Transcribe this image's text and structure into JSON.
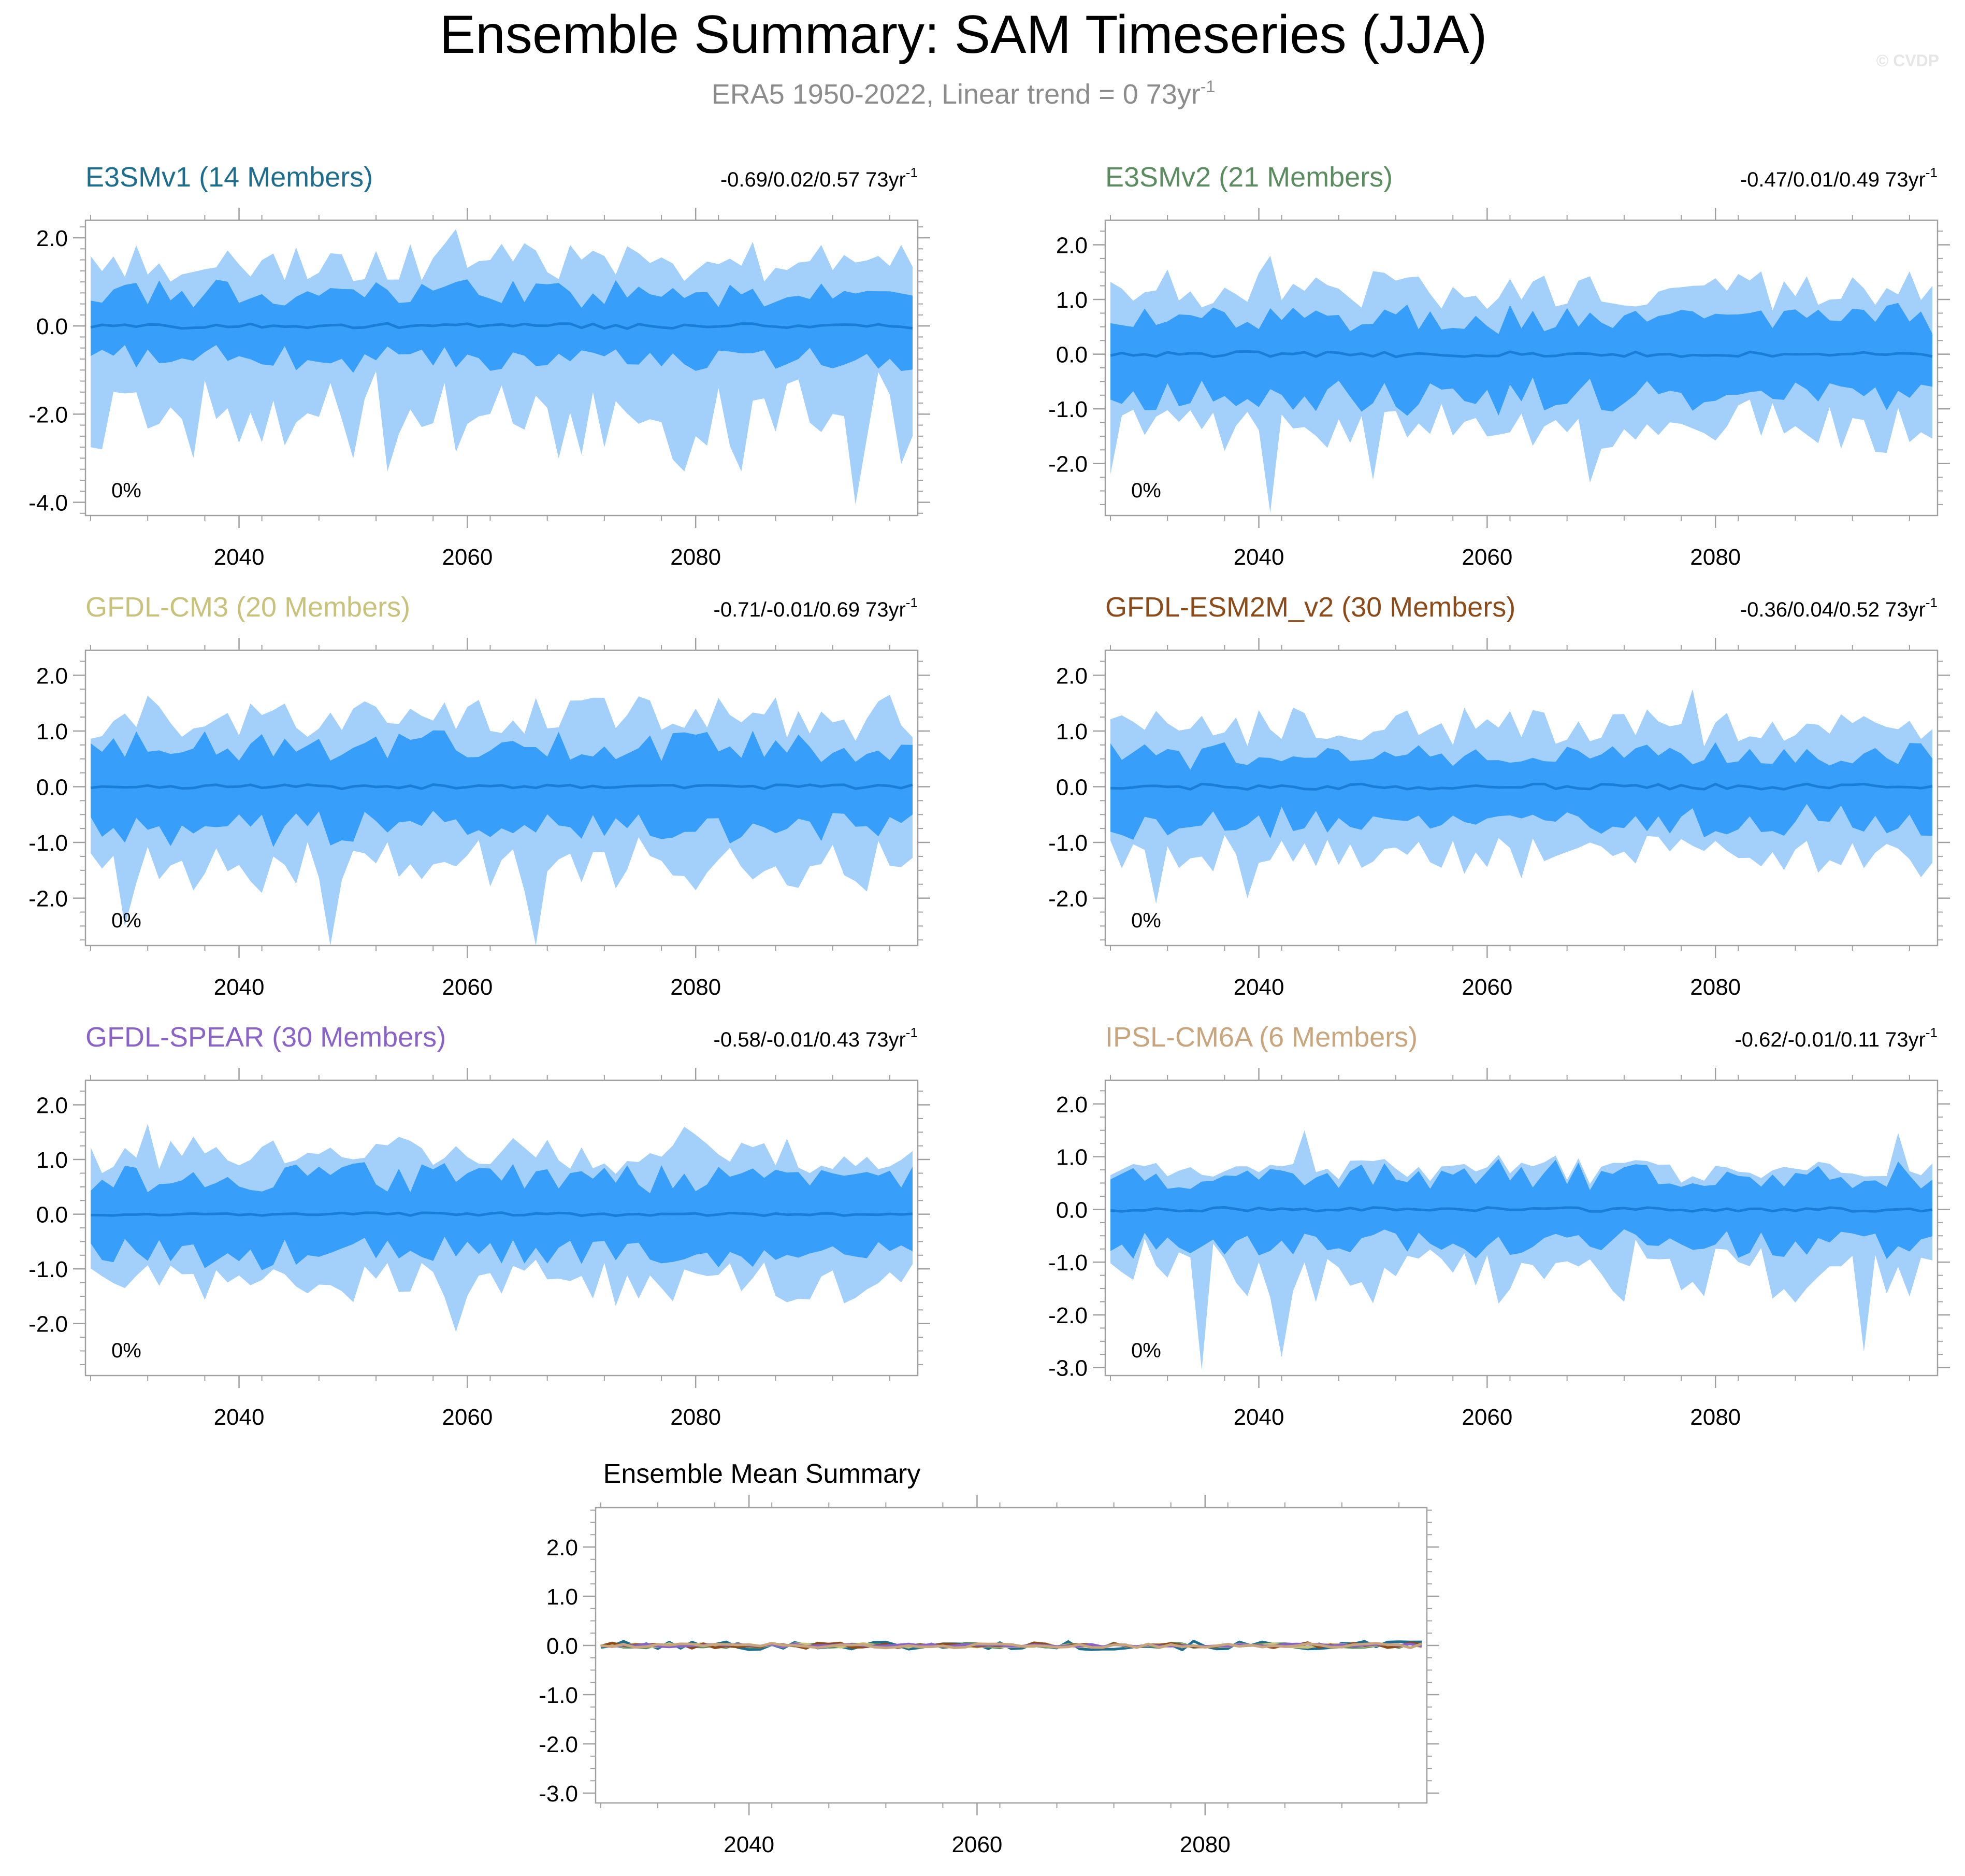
{
  "figure": {
    "title": "Ensemble Summary: SAM Timeseries (JJA)",
    "subtitle_text": "ERA5 1950-2022, Linear trend = 0 73yr",
    "subtitle_sup": "-1",
    "watermark": "© CVDP"
  },
  "colors": {
    "band_outer": "#a2d0fb",
    "band_inner": "#379ffa",
    "mean_line": "#1a7ed8",
    "frame": "#a0a0a0",
    "subtitle": "#8c8c8c"
  },
  "chart_data": [
    {
      "type": "area",
      "id": "e3smv1",
      "title": "E3SMv1 (14 Members)",
      "title_color": "#1d6d8e",
      "trend_text": "-0.69/0.02/0.57 73yr",
      "trend_sup": "-1",
      "percent_label": "0%",
      "x_start": 2027,
      "x_end": 2099,
      "xticks": [
        "2040",
        "2060",
        "2080"
      ],
      "ylim": [
        -4.3,
        2.4
      ],
      "yticks": [
        "2.0",
        "0.0",
        "-2.0",
        "-4.0"
      ],
      "ytick_values": [
        2.0,
        0.0,
        -2.0,
        -4.0
      ],
      "seed": 11,
      "mean_amp": 0.06,
      "inner_amp": 0.8,
      "outer_amp": 1.5,
      "outer_low_extra": 1.3,
      "inner_low_extra": 0.0,
      "extremes": [
        {
          "year": 2027,
          "band": "outer_low",
          "value": -2.75
        },
        {
          "year": 2028,
          "band": "outer_low",
          "value": -2.8
        },
        {
          "year": 2036,
          "band": "outer_low",
          "value": -3.0
        },
        {
          "year": 2048,
          "band": "outer_high",
          "value": 1.65
        },
        {
          "year": 2053,
          "band": "outer_low",
          "value": -3.3
        },
        {
          "year": 2059,
          "band": "outer_high",
          "value": 2.2
        },
        {
          "year": 2079,
          "band": "outer_low",
          "value": -3.3
        },
        {
          "year": 2084,
          "band": "outer_low",
          "value": -3.3
        },
        {
          "year": 2094,
          "band": "outer_low",
          "value": -4.05
        },
        {
          "year": 2099,
          "band": "outer_low",
          "value": -2.5
        }
      ]
    },
    {
      "type": "area",
      "id": "e3smv2",
      "title": "E3SMv2 (21 Members)",
      "title_color": "#5a8c5f",
      "trend_text": "-0.47/0.01/0.49 73yr",
      "trend_sup": "-1",
      "percent_label": "0%",
      "x_start": 2027,
      "x_end": 2099,
      "xticks": [
        "2040",
        "2060",
        "2080"
      ],
      "ylim": [
        -2.95,
        2.45
      ],
      "yticks": [
        "2.0",
        "1.0",
        "0.0",
        "-1.0",
        "-2.0"
      ],
      "ytick_values": [
        2.0,
        1.0,
        0.0,
        -1.0,
        -2.0
      ],
      "seed": 23,
      "mean_amp": 0.05,
      "inner_amp": 0.72,
      "outer_amp": 1.25,
      "outer_low_extra": 0.35,
      "inner_low_extra": 0.2,
      "extremes": [
        {
          "year": 2041,
          "band": "outer_low",
          "value": -2.9
        },
        {
          "year": 2041,
          "band": "outer_high",
          "value": 1.8
        },
        {
          "year": 2050,
          "band": "outer_low",
          "value": -2.3
        },
        {
          "year": 2069,
          "band": "outer_low",
          "value": -2.35
        },
        {
          "year": 2027,
          "band": "outer_low",
          "value": -2.2
        }
      ]
    },
    {
      "type": "area",
      "id": "gfdl-cm3",
      "title": "GFDL-CM3 (20 Members)",
      "title_color": "#c8c27a",
      "trend_text": "-0.71/-0.01/0.69 73yr",
      "trend_sup": "-1",
      "percent_label": "0%",
      "x_start": 2027,
      "x_end": 2099,
      "xticks": [
        "2040",
        "2060",
        "2080"
      ],
      "ylim": [
        -2.85,
        2.45
      ],
      "yticks": [
        "2.0",
        "1.0",
        "0.0",
        "-1.0",
        "-2.0"
      ],
      "ytick_values": [
        2.0,
        1.0,
        0.0,
        -1.0,
        -2.0
      ],
      "seed": 37,
      "mean_amp": 0.04,
      "inner_amp": 0.78,
      "outer_amp": 1.3,
      "outer_low_extra": 0.35,
      "inner_low_extra": 0.1,
      "extremes": [
        {
          "year": 2048,
          "band": "outer_low",
          "value": -2.85
        },
        {
          "year": 2066,
          "band": "outer_low",
          "value": -2.85
        },
        {
          "year": 2030,
          "band": "outer_low",
          "value": -2.5
        },
        {
          "year": 2097,
          "band": "outer_high",
          "value": 1.65
        }
      ]
    },
    {
      "type": "area",
      "id": "gfdl-esm2m-v2",
      "title": "GFDL-ESM2M_v2 (30 Members)",
      "title_color": "#8b4a18",
      "trend_text": "-0.36/0.04/0.52 73yr",
      "trend_sup": "-1",
      "percent_label": "0%",
      "x_start": 2027,
      "x_end": 2099,
      "xticks": [
        "2040",
        "2060",
        "2080"
      ],
      "ylim": [
        -2.85,
        2.45
      ],
      "yticks": [
        "2.0",
        "1.0",
        "0.0",
        "-1.0",
        "-2.0"
      ],
      "ytick_values": [
        2.0,
        1.0,
        0.0,
        -1.0,
        -2.0
      ],
      "seed": 41,
      "mean_amp": 0.05,
      "inner_amp": 0.62,
      "outer_amp": 1.15,
      "outer_low_extra": 0.25,
      "inner_low_extra": 0.15,
      "extremes": [
        {
          "year": 2078,
          "band": "outer_high",
          "value": 1.75
        },
        {
          "year": 2031,
          "band": "outer_low",
          "value": -2.1
        },
        {
          "year": 2039,
          "band": "outer_low",
          "value": -2.0
        }
      ]
    },
    {
      "type": "area",
      "id": "gfdl-spear",
      "title": "GFDL-SPEAR (30 Members)",
      "title_color": "#8a63c8",
      "trend_text": "-0.58/-0.01/0.43 73yr",
      "trend_sup": "-1",
      "percent_label": "0%",
      "x_start": 2027,
      "x_end": 2099,
      "xticks": [
        "2040",
        "2060",
        "2080"
      ],
      "ylim": [
        -2.95,
        2.45
      ],
      "yticks": [
        "2.0",
        "1.0",
        "0.0",
        "-1.0",
        "-2.0"
      ],
      "ytick_values": [
        2.0,
        1.0,
        0.0,
        -1.0,
        -2.0
      ],
      "seed": 53,
      "mean_amp": 0.03,
      "inner_amp": 0.72,
      "outer_amp": 1.15,
      "outer_low_extra": 0.3,
      "inner_low_extra": 0.1,
      "extremes": [
        {
          "year": 2059,
          "band": "outer_low",
          "value": -2.15
        },
        {
          "year": 2032,
          "band": "outer_high",
          "value": 1.65
        },
        {
          "year": 2079,
          "band": "outer_high",
          "value": 1.6
        }
      ]
    },
    {
      "type": "area",
      "id": "ipsl-cm6a",
      "title": "IPSL-CM6A (6 Members)",
      "title_color": "#c9a57e",
      "trend_text": "-0.62/-0.01/0.11 73yr",
      "trend_sup": "-1",
      "percent_label": "0%",
      "x_start": 2027,
      "x_end": 2099,
      "xticks": [
        "2040",
        "2060",
        "2080"
      ],
      "ylim": [
        -3.15,
        2.45
      ],
      "yticks": [
        "2.0",
        "1.0",
        "0.0",
        "-1.0",
        "-2.0",
        "-3.0"
      ],
      "ytick_values": [
        2.0,
        1.0,
        0.0,
        -1.0,
        -2.0,
        -3.0
      ],
      "seed": 67,
      "mean_amp": 0.04,
      "inner_amp": 0.72,
      "outer_amp": 0.72,
      "outer_low_extra": 1.0,
      "inner_low_extra": 0.0,
      "extremes": [
        {
          "year": 2035,
          "band": "outer_low",
          "value": -3.05
        },
        {
          "year": 2042,
          "band": "outer_low",
          "value": -2.8
        },
        {
          "year": 2044,
          "band": "outer_high",
          "value": 1.5
        },
        {
          "year": 2096,
          "band": "outer_high",
          "value": 1.45
        },
        {
          "year": 2093,
          "band": "outer_low",
          "value": -2.7
        }
      ]
    },
    {
      "type": "line",
      "id": "ensemble-mean",
      "title": "Ensemble Mean Summary",
      "x_start": 2027,
      "x_end": 2099,
      "xticks": [
        "2040",
        "2060",
        "2080"
      ],
      "ylim": [
        -3.2,
        2.8
      ],
      "yticks": [
        "2.0",
        "1.0",
        "0.0",
        "-1.0",
        "-2.0",
        "-3.0"
      ],
      "ytick_values": [
        2.0,
        1.0,
        0.0,
        -1.0,
        -2.0,
        -3.0
      ],
      "series": [
        {
          "name": "E3SMv1",
          "color": "#1d6d8e",
          "amp": 0.09,
          "seed": 101
        },
        {
          "name": "E3SMv2",
          "color": "#5a8c5f",
          "amp": 0.05,
          "seed": 202
        },
        {
          "name": "GFDL-CM3",
          "color": "#c8c27a",
          "amp": 0.04,
          "seed": 303
        },
        {
          "name": "GFDL-ESM2M_v2",
          "color": "#8b4a18",
          "amp": 0.06,
          "seed": 404
        },
        {
          "name": "GFDL-SPEAR",
          "color": "#8a63c8",
          "amp": 0.03,
          "seed": 505
        },
        {
          "name": "IPSL-CM6A",
          "color": "#c9a57e",
          "amp": 0.05,
          "seed": 606
        }
      ]
    }
  ]
}
